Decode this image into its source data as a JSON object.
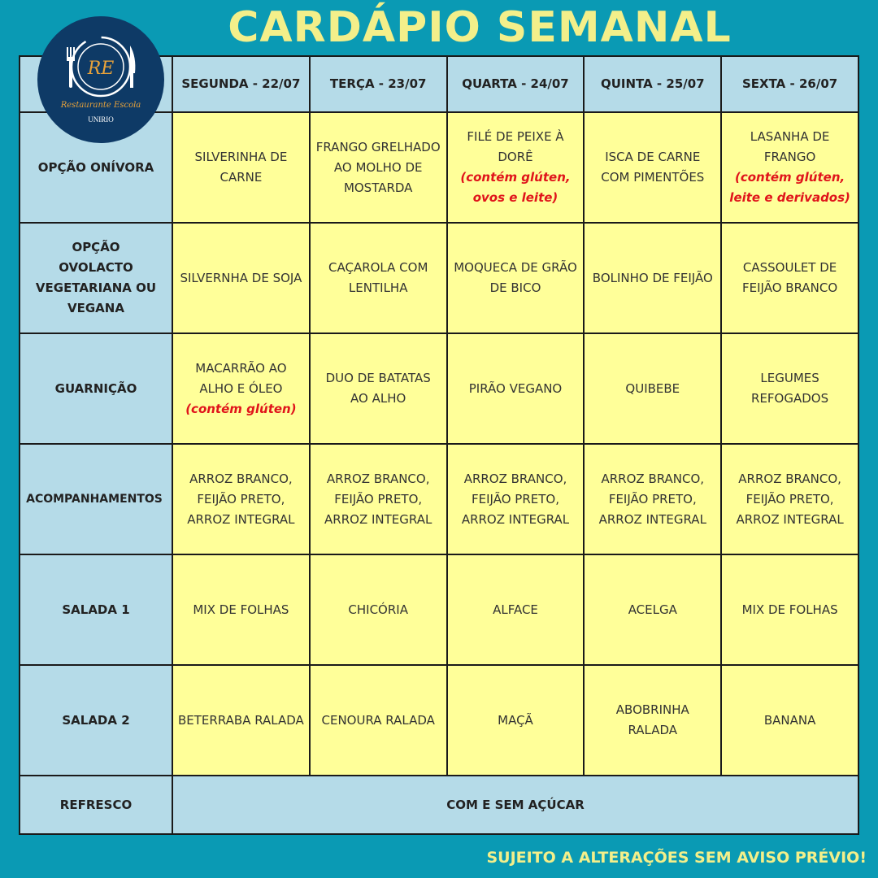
{
  "title": "CARDÁPIO SEMANAL",
  "logo": {
    "initials": "RE",
    "brand": "Restaurante Escola",
    "institution": "UNIRIO"
  },
  "days": [
    "SEGUNDA - 22/07",
    "TERÇA - 23/07",
    "QUARTA - 24/07",
    "QUINTA - 25/07",
    "SEXTA - 26/07"
  ],
  "rows": [
    {
      "label": "OPÇÃO ONÍVORA",
      "cells": [
        {
          "text": "SILVERINHA DE CARNE"
        },
        {
          "text": "FRANGO GRELHADO AO MOLHO DE MOSTARDA"
        },
        {
          "text": "FILÉ DE PEIXE À DORÊ",
          "note": "(contém glúten, ovos e leite)"
        },
        {
          "text": "ISCA DE CARNE COM PIMENTÕES"
        },
        {
          "text": "LASANHA DE FRANGO",
          "note": "(contém glúten, leite e derivados)"
        }
      ]
    },
    {
      "label": "OPÇÃO OVOLACTO VEGETARIANA OU VEGANA",
      "cells": [
        {
          "text": "SILVERNHA DE SOJA"
        },
        {
          "text": "CAÇAROLA COM LENTILHA"
        },
        {
          "text": "MOQUECA DE GRÃO DE BICO"
        },
        {
          "text": "BOLINHO DE FEIJÃO"
        },
        {
          "text": "CASSOULET DE FEIJÃO BRANCO"
        }
      ]
    },
    {
      "label": "GUARNIÇÃO",
      "cells": [
        {
          "text": "MACARRÃO AO ALHO E ÓLEO",
          "note": "(contém glúten)"
        },
        {
          "text": "DUO DE BATATAS AO ALHO"
        },
        {
          "text": "PIRÃO VEGANO"
        },
        {
          "text": "QUIBEBE"
        },
        {
          "text": "LEGUMES REFOGADOS"
        }
      ]
    },
    {
      "label": "ACOMPANHAMENTOS",
      "cells": [
        {
          "text": "ARROZ BRANCO, FEIJÃO PRETO, ARROZ INTEGRAL"
        },
        {
          "text": "ARROZ BRANCO, FEIJÃO PRETO, ARROZ INTEGRAL"
        },
        {
          "text": "ARROZ BRANCO, FEIJÃO PRETO, ARROZ INTEGRAL"
        },
        {
          "text": "ARROZ BRANCO, FEIJÃO PRETO, ARROZ INTEGRAL"
        },
        {
          "text": "ARROZ BRANCO, FEIJÃO PRETO, ARROZ INTEGRAL"
        }
      ]
    },
    {
      "label": "SALADA 1",
      "cells": [
        {
          "text": "MIX DE FOLHAS"
        },
        {
          "text": "CHICÓRIA"
        },
        {
          "text": "ALFACE"
        },
        {
          "text": "ACELGA"
        },
        {
          "text": "MIX DE FOLHAS"
        }
      ]
    },
    {
      "label": "SALADA 2",
      "cells": [
        {
          "text": "BETERRABA RALADA"
        },
        {
          "text": "CENOURA RALADA"
        },
        {
          "text": "MAÇÃ"
        },
        {
          "text": "ABOBRINHA RALADA"
        },
        {
          "text": "BANANA"
        }
      ]
    }
  ],
  "refresco": {
    "label": "REFRESCO",
    "value": "COM E SEM AÇÚCAR"
  },
  "footer": "SUJEITO A ALTERAÇÕES SEM AVISO PRÉVIO!",
  "colors": {
    "background": "#0a9ab4",
    "label_cell": "#b5dbe8",
    "menu_cell": "#ffff99",
    "allergen_note": "#e0141b",
    "title": "#f3ef8a"
  }
}
